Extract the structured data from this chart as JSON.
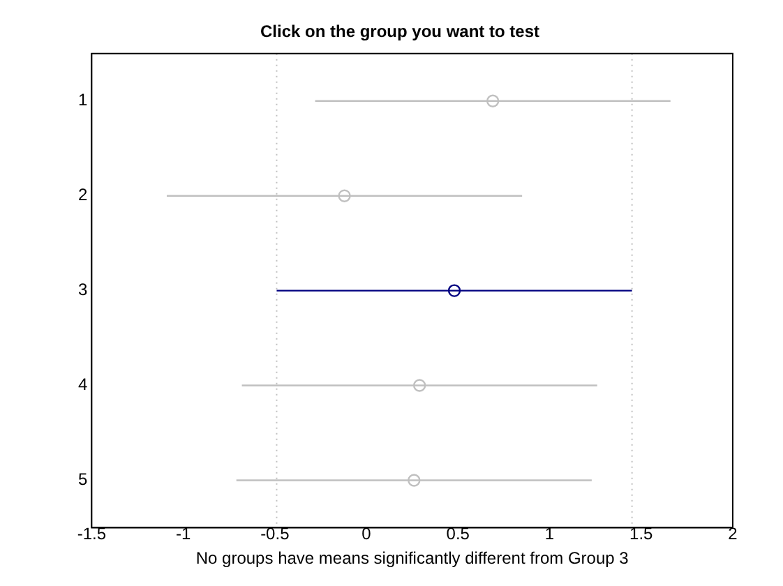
{
  "chart_data": {
    "type": "scatter",
    "orientation": "horizontal",
    "title": "Click on the group you want to test",
    "xlabel": "No groups have means significantly different from Group 3",
    "categories": [
      "1",
      "2",
      "3",
      "4",
      "5"
    ],
    "values": [
      0.69,
      -0.12,
      0.48,
      0.29,
      0.26
    ],
    "errors": [
      0.97,
      0.97,
      0.97,
      0.97,
      0.97
    ],
    "colors": [
      "#c0c0c0",
      "#c0c0c0",
      "#000080",
      "#c0c0c0",
      "#c0c0c0"
    ],
    "marker": "circle",
    "grid": false,
    "legend": false,
    "xlim": [
      -1.5,
      2
    ],
    "xticks": [
      -1.5,
      -1,
      -0.5,
      0,
      0.5,
      1,
      1.5,
      2
    ],
    "ref_lines": [
      {
        "axis": "x",
        "value": -0.49,
        "line_style": "dotted",
        "color": "#c0c0c0"
      },
      {
        "axis": "x",
        "value": 1.45,
        "line_style": "dotted",
        "color": "#c0c0c0"
      }
    ]
  }
}
